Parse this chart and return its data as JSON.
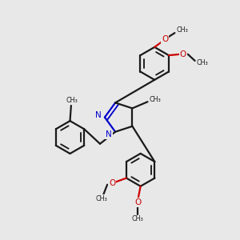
{
  "background_color": "#e8e8e8",
  "bond_color": "#1a1a1a",
  "nitrogen_color": "#0000cc",
  "oxygen_color": "#cc0000",
  "line_width": 1.6,
  "figsize": [
    3.0,
    3.0
  ],
  "dpi": 100,
  "xlim": [
    -2.0,
    2.2
  ],
  "ylim": [
    -2.2,
    2.2
  ]
}
